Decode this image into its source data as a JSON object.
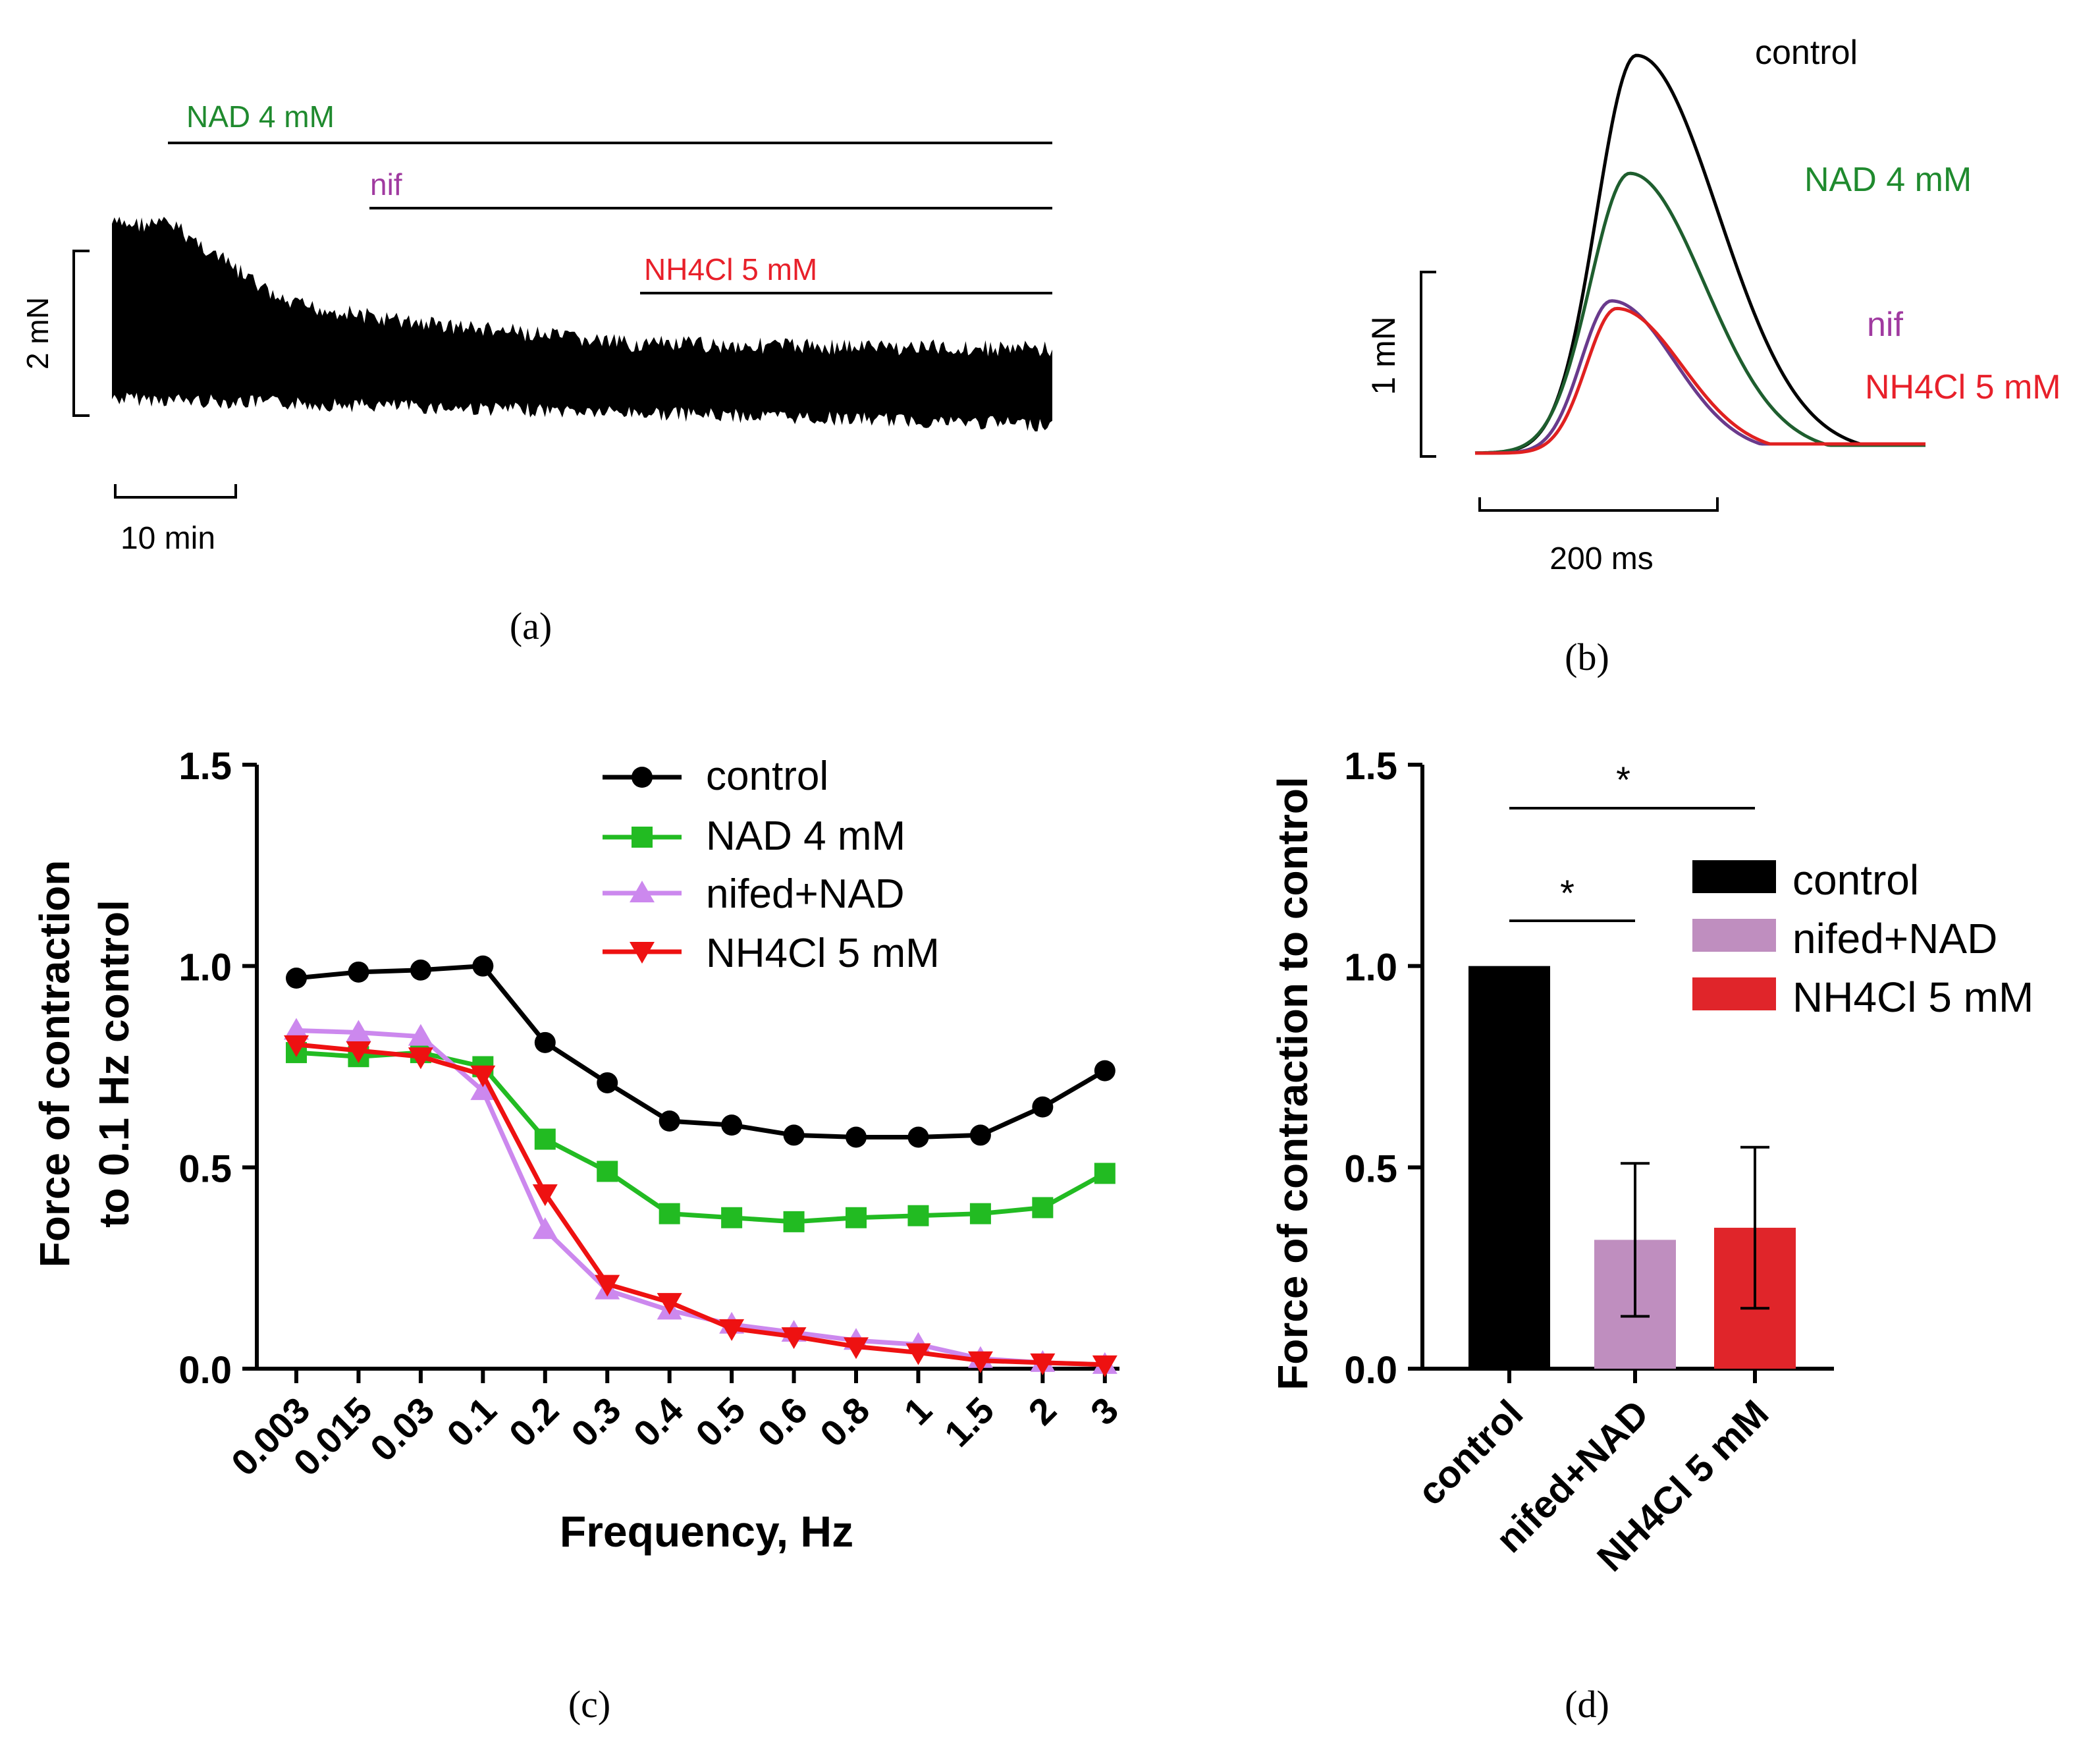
{
  "colors": {
    "control": "#000000",
    "nad": "#1f8a2e",
    "nif": "#a03aa0",
    "nh4": "#e8202a",
    "nad_c": "#22bb22",
    "nifed_c": "#cc88ee",
    "nh4_c": "#ee1111",
    "nifed_bar": "#bf8ebf",
    "nh4_bar": "#e0252a",
    "b_control": "#000000",
    "b_nad": "#1e5e2e",
    "b_nif": "#6a3a8c",
    "b_nh4": "#e02020"
  },
  "panel_a": {
    "label": "(a)",
    "bars": [
      {
        "label": "NAD 4 mM"
      },
      {
        "label": "nif"
      },
      {
        "label": "NH4Cl 5 mM"
      }
    ],
    "scale_y": "2 mN",
    "scale_x": "10 min"
  },
  "panel_b": {
    "label": "(b)",
    "traces": [
      {
        "name": "control",
        "peak_mN": 2.09
      },
      {
        "name": "NAD 4 mM",
        "peak_mN": 1.47
      },
      {
        "name": "nif",
        "peak_mN": 0.8
      },
      {
        "name": "NH4Cl 5 mM",
        "peak_mN": 0.76
      }
    ],
    "scale_y": "1 mN",
    "scale_x": "200 ms"
  },
  "panel_c": {
    "label": "(c)",
    "chart_data": {
      "type": "line",
      "title": "",
      "xlabel": "Frequency, Hz",
      "ylabel_line1": "Force of contraction",
      "ylabel_line2": "to 0.1 Hz control",
      "ylim": [
        0,
        1.5
      ],
      "yticks": [
        "0.0",
        "0.5",
        "1.0",
        "1.5"
      ],
      "categories": [
        "0.003",
        "0.015",
        "0.03",
        "0.1",
        "0.2",
        "0.3",
        "0.4",
        "0.5",
        "0.6",
        "0.8",
        "1",
        "1.5",
        "2",
        "3"
      ],
      "series": [
        {
          "name": "control",
          "marker": "circle",
          "values": [
            0.97,
            0.985,
            0.99,
            1.0,
            0.81,
            0.71,
            0.615,
            0.605,
            0.58,
            0.575,
            0.575,
            0.58,
            0.65,
            0.74
          ]
        },
        {
          "name": "NAD 4 mM",
          "marker": "square",
          "values": [
            0.785,
            0.775,
            0.785,
            0.75,
            0.57,
            0.49,
            0.385,
            0.375,
            0.365,
            0.375,
            0.38,
            0.385,
            0.4,
            0.485
          ]
        },
        {
          "name": "nifed+NAD",
          "marker": "triangle-up",
          "values": [
            0.84,
            0.835,
            0.825,
            0.69,
            0.345,
            0.195,
            0.145,
            0.11,
            0.09,
            0.07,
            0.06,
            0.025,
            0.015,
            0.01
          ]
        },
        {
          "name": "NH4Cl 5 mM",
          "marker": "triangle-down",
          "values": [
            0.805,
            0.79,
            0.775,
            0.73,
            0.435,
            0.21,
            0.165,
            0.1,
            0.08,
            0.055,
            0.04,
            0.02,
            0.015,
            0.01
          ]
        }
      ],
      "legend": "top-right"
    }
  },
  "panel_d": {
    "label": "(d)",
    "chart_data": {
      "type": "bar",
      "title": "",
      "xlabel": "",
      "ylabel": "Force of contraction to control",
      "ylim": [
        0,
        1.5
      ],
      "yticks": [
        "0.0",
        "0.5",
        "1.0",
        "1.5"
      ],
      "categories": [
        "control",
        "nifed+NAD",
        "NH4Cl 5 mM"
      ],
      "values": [
        1.0,
        0.32,
        0.35
      ],
      "errors": [
        0,
        0.19,
        0.2
      ],
      "significance": [
        {
          "from": "control",
          "to": "nifed+NAD",
          "text": "*"
        },
        {
          "from": "control",
          "to": "NH4Cl 5 mM",
          "text": "*"
        }
      ],
      "legend_labels": [
        "control",
        "nifed+NAD",
        "NH4Cl 5 mM"
      ],
      "legend": "right"
    }
  }
}
